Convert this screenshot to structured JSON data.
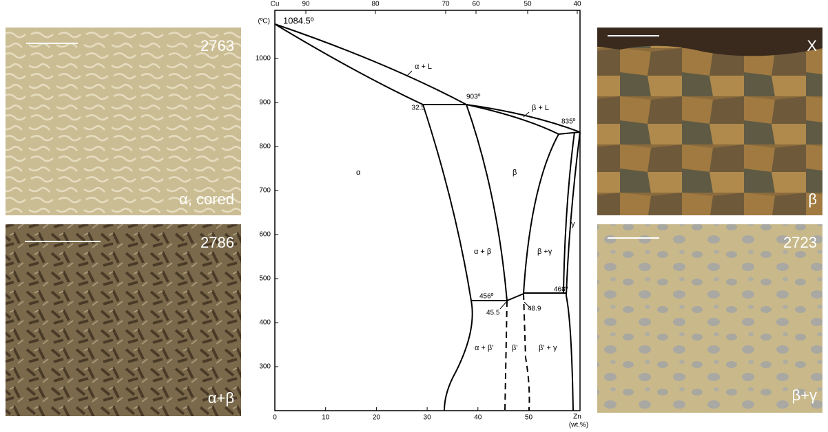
{
  "micrographs": [
    {
      "id": "2763",
      "phase": "α, cored"
    },
    {
      "id": "2786",
      "phase": "α+β"
    },
    {
      "id": "X",
      "phase": "β"
    },
    {
      "id": "2723",
      "phase": "β+γ"
    }
  ],
  "diagram": {
    "y_axis_label": "(ºC)",
    "x_axis_label": "(wt.%)",
    "x_end_label": "Zn",
    "top_start_label": "Cu",
    "yticks": [
      300,
      400,
      500,
      600,
      700,
      800,
      900,
      1000
    ],
    "xticks": [
      0,
      10,
      20,
      30,
      40,
      50
    ],
    "top_ticks": [
      90,
      80,
      70,
      60,
      50,
      40
    ],
    "annotations": [
      "1084.5º",
      "α + L",
      "903º",
      "β + L",
      "835º",
      "32.5",
      "α",
      "β",
      "γ",
      "α + β",
      "β +γ",
      "456º",
      "468º",
      "45.5",
      "48.9",
      "α + β'",
      "β'",
      "β' + γ"
    ]
  }
}
